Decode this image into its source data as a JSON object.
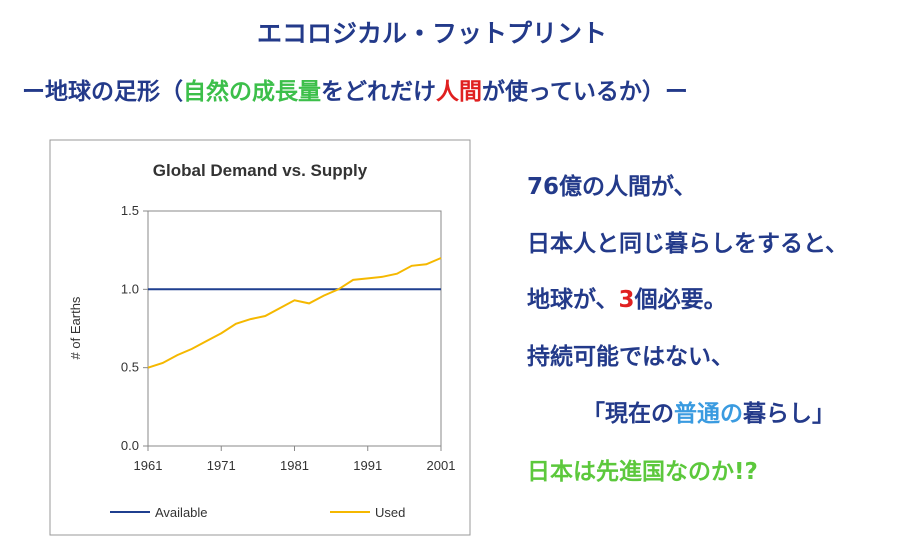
{
  "slide": {
    "title": "エコロジカル・フットプリント",
    "subtitle": [
      {
        "text": "ー地球の足形（",
        "color": "#233a8a"
      },
      {
        "text": "自然の成長量",
        "color": "#3cbf4a"
      },
      {
        "text": "をどれだけ",
        "color": "#233a8a"
      },
      {
        "text": "人間",
        "color": "#e02020"
      },
      {
        "text": "が使っているか）ー",
        "color": "#233a8a"
      }
    ],
    "lines": [
      [
        {
          "text": "76億の人間が、",
          "color": "#233a8a"
        }
      ],
      [
        {
          "text": "日本人と同じ暮らしをすると、",
          "color": "#233a8a"
        }
      ],
      [
        {
          "text": "地球が、",
          "color": "#233a8a"
        },
        {
          "text": "3",
          "color": "#e02020"
        },
        {
          "text": "個必要。",
          "color": "#233a8a"
        }
      ],
      [
        {
          "text": "持続可能ではない、",
          "color": "#233a8a"
        }
      ],
      [
        {
          "text": "「現在の",
          "color": "#233a8a"
        },
        {
          "text": "普通の",
          "color": "#3a9be0"
        },
        {
          "text": "暮らし」",
          "color": "#233a8a"
        }
      ],
      [
        {
          "text": "日本は先進国なのか!?",
          "color": "#5cc83c"
        }
      ]
    ]
  },
  "chart_data": {
    "type": "line",
    "title": "Global Demand vs. Supply",
    "y_label": "# of Earths",
    "x": [
      1961,
      1963,
      1965,
      1967,
      1969,
      1971,
      1973,
      1975,
      1977,
      1979,
      1981,
      1983,
      1985,
      1987,
      1989,
      1991,
      1993,
      1995,
      1997,
      1999,
      2001
    ],
    "series": [
      {
        "name": "Available",
        "color": "#1f3f8f",
        "values": [
          1,
          1,
          1,
          1,
          1,
          1,
          1,
          1,
          1,
          1,
          1,
          1,
          1,
          1,
          1,
          1,
          1,
          1,
          1,
          1,
          1
        ]
      },
      {
        "name": "Used",
        "color": "#f5b800",
        "values": [
          0.5,
          0.53,
          0.58,
          0.62,
          0.67,
          0.72,
          0.78,
          0.81,
          0.83,
          0.88,
          0.93,
          0.91,
          0.96,
          1.0,
          1.06,
          1.07,
          1.08,
          1.1,
          1.15,
          1.16,
          1.2
        ]
      }
    ],
    "xlim": [
      1961,
      2001
    ],
    "xticks": [
      1961,
      1971,
      1981,
      1991,
      2001
    ],
    "ylim": [
      0,
      1.5
    ],
    "yticks": [
      {
        "value": 0,
        "label": "0.0"
      },
      0.5,
      {
        "value": 1,
        "label": "1.0"
      },
      1.5
    ],
    "legend": "bottom"
  }
}
